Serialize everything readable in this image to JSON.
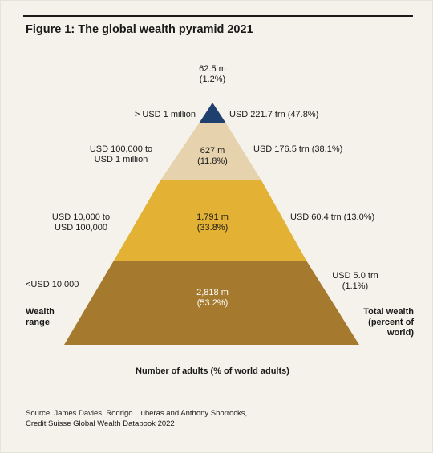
{
  "title": "Figure 1: The global wealth pyramid 2021",
  "pyramid": {
    "tiers": [
      {
        "range": [
          "> USD 1 million"
        ],
        "adults": "62.5 m",
        "adults_pct": "(1.2%)",
        "wealth": [
          "USD 221.7 trn (47.8%)"
        ],
        "color": "#1f3f6e"
      },
      {
        "range": [
          "USD 100,000 to",
          "USD 1 million"
        ],
        "adults": "627 m",
        "adults_pct": "(11.8%)",
        "wealth": [
          "USD 176.5 trn (38.1%)"
        ],
        "color": "#e6d3ae"
      },
      {
        "range": [
          "USD 10,000 to",
          "USD 100,000"
        ],
        "adults": "1,791 m",
        "adults_pct": "(33.8%)",
        "wealth": [
          "USD 60.4 trn (13.0%)"
        ],
        "color": "#e3b234"
      },
      {
        "range": [
          "<USD 10,000"
        ],
        "adults": "2,818 m",
        "adults_pct": "(53.2%)",
        "wealth": [
          "USD 5.0 trn",
          "(1.1%)"
        ],
        "color": "#a5792e"
      }
    ],
    "left_axis_label": [
      "Wealth",
      "range"
    ],
    "right_axis_label": [
      "Total wealth",
      "(percent of",
      "world)"
    ],
    "bottom_label": "Number of adults (% of world adults)"
  },
  "source": [
    "Source: James Davies, Rodrigo Lluberas and Anthony Shorrocks,",
    "Credit Suisse Global Wealth Databook 2022"
  ]
}
